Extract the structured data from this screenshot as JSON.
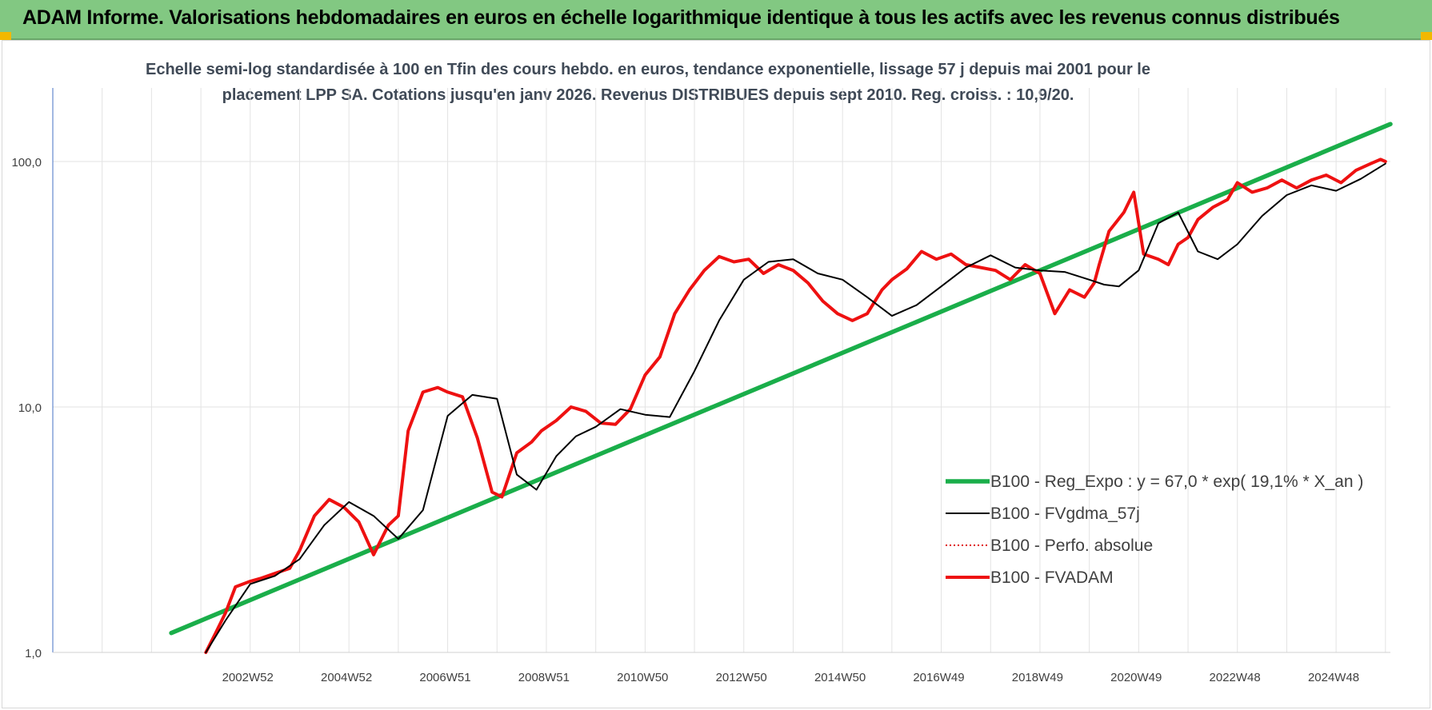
{
  "header": {
    "title": "ADAM Informe. Valorisations hebdomadaires en euros en échelle logarithmique identique à tous les actifs avec les revenus connus distribués"
  },
  "colors": {
    "header_bg": "#82c882",
    "regression": "#1aae4a",
    "smoothed": "#000000",
    "perfo": "#e01010",
    "fvadam": "#ee1111",
    "grid": "#e3e3e3",
    "corner": "#f2b800"
  },
  "chart_data": {
    "type": "line",
    "title_line1": "Echelle semi-log standardisée à 100 en Tfin des cours hebdo. en euros, tendance exponentielle, lissage 57 j depuis mai 2001 pour le",
    "title_line2": "placement LPP SA. Cotations jusqu'en janv 2026. Revenus DISTRIBUES depuis sept 2010. Reg. croiss. : 10,9/20.",
    "y_scale": "log",
    "ylim": [
      1,
      200
    ],
    "y_ticks": [
      "100,0",
      "10,0",
      "1,0"
    ],
    "x_ticks": [
      "2002W52",
      "2004W52",
      "2006W51",
      "2008W51",
      "2010W50",
      "2012W50",
      "2014W50",
      "2016W49",
      "2018W49",
      "2020W49",
      "2022W48",
      "2024W48"
    ],
    "x_range": [
      1999.0,
      2026.1
    ],
    "grid": true,
    "legend_position": "bottom-right",
    "series": [
      {
        "name": "B100 - Reg_Expo : y = 67,0 * exp( 19,1% *  X_an )",
        "style": "thick-green",
        "x": [
          2001.4,
          2026.1
        ],
        "y": [
          1.2,
          142
        ]
      },
      {
        "name": "B100 - FVgdma_57j",
        "style": "thin-black",
        "x": [
          2002.1,
          2002.5,
          2003.0,
          2003.5,
          2004.0,
          2004.5,
          2005.0,
          2005.5,
          2006.0,
          2006.5,
          2007.0,
          2007.5,
          2008.0,
          2008.4,
          2008.8,
          2009.2,
          2009.6,
          2010.0,
          2010.5,
          2011.0,
          2011.5,
          2012.0,
          2012.5,
          2013.0,
          2013.5,
          2014.0,
          2014.5,
          2015.0,
          2015.5,
          2016.0,
          2016.5,
          2017.0,
          2017.5,
          2018.0,
          2018.5,
          2019.0,
          2019.5,
          2020.0,
          2020.3,
          2020.6,
          2021.0,
          2021.4,
          2021.8,
          2022.2,
          2022.6,
          2023.0,
          2023.5,
          2024.0,
          2024.5,
          2025.0,
          2025.5,
          2026.0
        ],
        "y": [
          1.0,
          1.35,
          1.9,
          2.05,
          2.4,
          3.3,
          4.1,
          3.6,
          2.9,
          3.8,
          9.2,
          11.2,
          10.8,
          5.3,
          4.6,
          6.3,
          7.6,
          8.3,
          9.8,
          9.3,
          9.1,
          14.0,
          22.5,
          33.0,
          39.0,
          40.0,
          35.0,
          33.0,
          28.0,
          23.5,
          26.0,
          31.0,
          37.0,
          41.5,
          37.0,
          36.0,
          35.5,
          33.0,
          31.5,
          31.0,
          36.0,
          56.0,
          62.0,
          43.0,
          40.0,
          46.0,
          60.0,
          73.0,
          80.0,
          76.0,
          85.0,
          98.0
        ]
      },
      {
        "name": "B100 - Perfo. absolue",
        "style": "dotted-red",
        "x": [],
        "y": []
      },
      {
        "name": "B100 - FVADAM",
        "style": "thick-red",
        "x": [
          2002.1,
          2002.3,
          2002.5,
          2002.7,
          2003.0,
          2003.2,
          2003.5,
          2003.8,
          2004.0,
          2004.3,
          2004.6,
          2004.9,
          2005.2,
          2005.5,
          2005.8,
          2006.0,
          2006.2,
          2006.5,
          2006.8,
          2007.0,
          2007.3,
          2007.6,
          2007.9,
          2008.1,
          2008.4,
          2008.7,
          2008.9,
          2009.2,
          2009.5,
          2009.8,
          2010.1,
          2010.4,
          2010.7,
          2011.0,
          2011.3,
          2011.6,
          2011.9,
          2012.2,
          2012.5,
          2012.8,
          2013.1,
          2013.4,
          2013.7,
          2014.0,
          2014.3,
          2014.6,
          2014.9,
          2015.2,
          2015.5,
          2015.8,
          2016.0,
          2016.3,
          2016.6,
          2016.9,
          2017.2,
          2017.5,
          2017.8,
          2018.1,
          2018.4,
          2018.7,
          2019.0,
          2019.3,
          2019.6,
          2019.9,
          2020.1,
          2020.2,
          2020.4,
          2020.7,
          2020.9,
          2021.1,
          2021.4,
          2021.6,
          2021.8,
          2022.0,
          2022.2,
          2022.5,
          2022.8,
          2023.0,
          2023.3,
          2023.6,
          2023.9,
          2024.2,
          2024.5,
          2024.8,
          2025.1,
          2025.4,
          2025.7,
          2025.9,
          2026.0
        ],
        "y": [
          1.0,
          1.2,
          1.45,
          1.85,
          1.95,
          2.0,
          2.1,
          2.2,
          2.6,
          3.6,
          4.2,
          3.9,
          3.4,
          2.5,
          3.3,
          3.6,
          8.0,
          11.5,
          12.0,
          11.5,
          11.0,
          7.5,
          4.5,
          4.3,
          6.5,
          7.2,
          8.0,
          8.8,
          10.0,
          9.6,
          8.6,
          8.5,
          9.8,
          13.5,
          16.0,
          24.0,
          30.0,
          36.0,
          41.0,
          39.0,
          40.0,
          35.0,
          38.0,
          36.0,
          32.0,
          27.0,
          24.0,
          22.5,
          24.0,
          30.0,
          33.0,
          36.5,
          43.0,
          40.0,
          42.0,
          38.0,
          37.0,
          36.0,
          33.0,
          38.0,
          35.0,
          24.0,
          30.0,
          28.0,
          32.0,
          38.0,
          52.0,
          62.0,
          75.0,
          42.0,
          40.0,
          38.0,
          46.0,
          49.0,
          58.0,
          65.0,
          70.0,
          82.0,
          75.0,
          78.0,
          84.0,
          78.0,
          84.0,
          88.0,
          82.0,
          92.0,
          98.0,
          102.0,
          100.0
        ]
      }
    ]
  }
}
